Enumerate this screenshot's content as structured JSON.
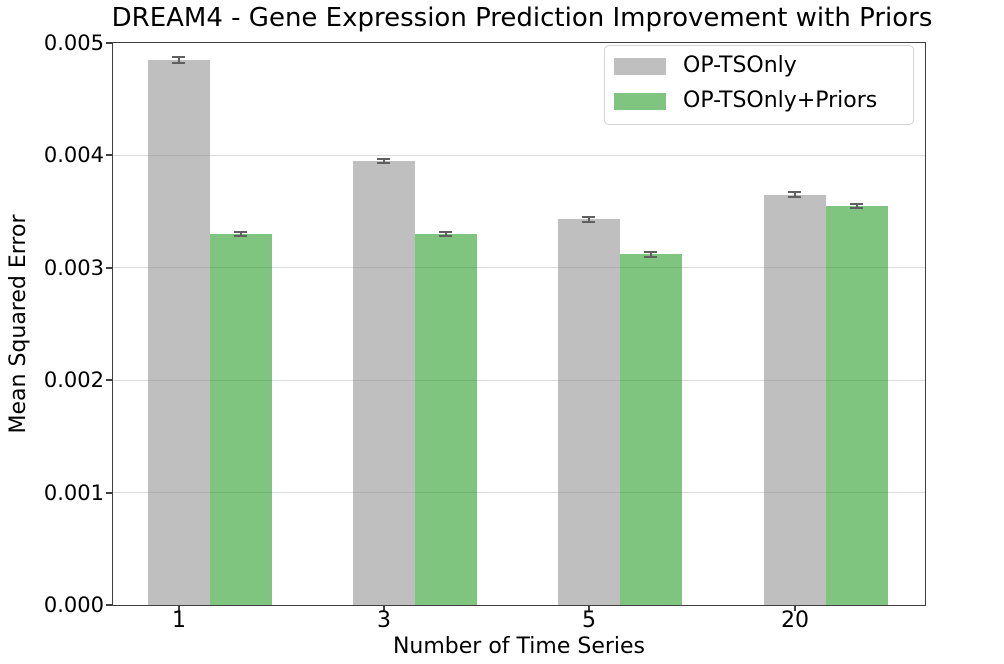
{
  "chart_data": {
    "type": "bar",
    "title": "DREAM4 - Gene Expression Prediction Improvement with Priors",
    "xlabel": "Number of Time Series",
    "ylabel": "Mean Squared Error",
    "categories": [
      "1",
      "3",
      "5",
      "20"
    ],
    "series": [
      {
        "name": "OP-TSOnly",
        "color": "#808080",
        "blended_hex": "#bfbfbf",
        "opacity": 0.5,
        "values": [
          0.00485,
          0.00395,
          0.00343,
          0.00365
        ],
        "errors": [
          2.5e-05,
          2e-05,
          2e-05,
          2e-05
        ]
      },
      {
        "name": "OP-TSOnly+Priors",
        "color": "#008c00",
        "blended_hex": "#80c580",
        "opacity": 0.5,
        "values": [
          0.0033,
          0.0033,
          0.00312,
          0.00355
        ],
        "errors": [
          2e-05,
          2e-05,
          2e-05,
          2e-05
        ]
      }
    ],
    "ylim": [
      0,
      0.005
    ],
    "ytick_labels": [
      "0.000",
      "0.001",
      "0.002",
      "0.003",
      "0.004",
      "0.005"
    ],
    "ytick_values": [
      0,
      0.001,
      0.002,
      0.003,
      0.004,
      0.005
    ],
    "grid": "horizontal",
    "gridline_color": "#dcdcdc",
    "spine_color": "#3f3f3f",
    "error_bar_color": "#606060",
    "legend": {
      "position": "upper-right",
      "entries": [
        "OP-TSOnly",
        "OP-TSOnly+Priors"
      ]
    }
  }
}
